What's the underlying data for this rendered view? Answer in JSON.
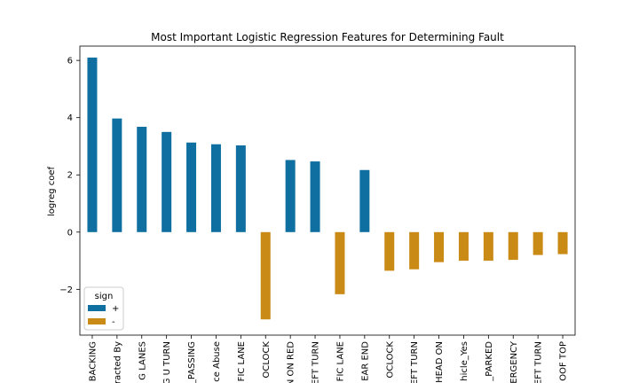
{
  "chart_data": {
    "type": "bar",
    "title": "Most Important Logistic Regression Features for Determining Fault",
    "xlabel": "",
    "ylabel": "logreg coef",
    "ylim": [
      -3.6,
      6.5
    ],
    "yticks": [
      6,
      4,
      2,
      0,
      -2
    ],
    "grid": false,
    "legend": {
      "title": "sign",
      "placement": "lower-left",
      "entries": [
        {
          "label": "+",
          "color": "#0f6fa0"
        },
        {
          "label": "-",
          "color": "#c98a16"
        }
      ]
    },
    "categories": [
      "BACKING",
      "racted By",
      "G LANES",
      "G U TURN",
      "_PASSING",
      "ce Abuse",
      "FIC LANE",
      "OCLOCK",
      "N ON RED",
      "EFT TURN",
      "FIC LANE",
      "EAR END",
      "OCLOCK",
      "EFT TURN",
      "HEAD ON",
      "hicle_Yes",
      "_PARKED",
      "ERGENCY",
      "EFT TURN",
      "OOF TOP"
    ],
    "values": [
      6.1,
      3.97,
      3.68,
      3.5,
      3.13,
      3.07,
      3.03,
      -3.05,
      2.52,
      2.47,
      -2.17,
      2.17,
      -1.35,
      -1.3,
      -1.05,
      -1.0,
      -1.0,
      -0.97,
      -0.8,
      -0.77
    ],
    "signs": [
      "+",
      "+",
      "+",
      "+",
      "+",
      "+",
      "+",
      "-",
      "+",
      "+",
      "-",
      "+",
      "-",
      "-",
      "-",
      "-",
      "-",
      "-",
      "-",
      "-"
    ]
  }
}
